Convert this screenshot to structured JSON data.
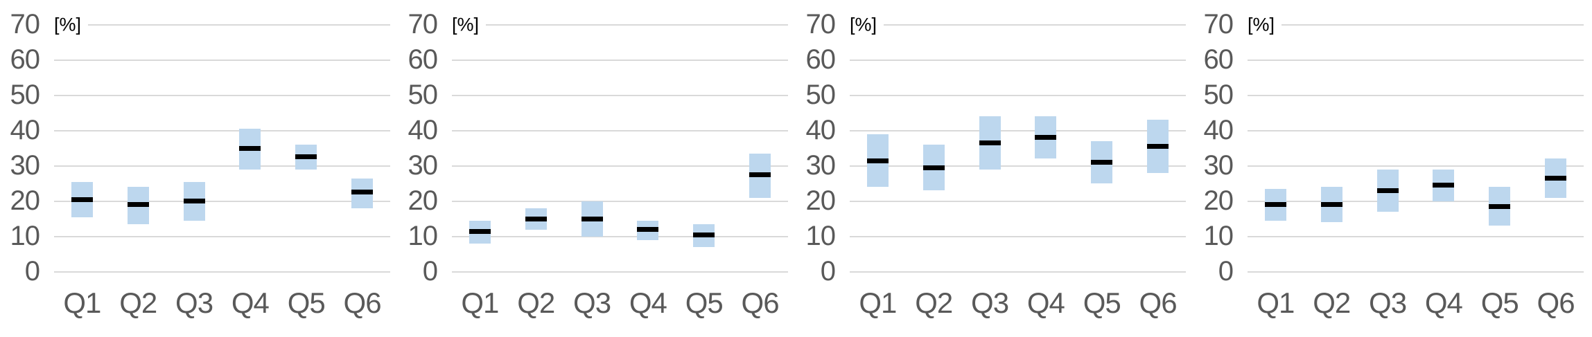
{
  "page": {
    "background": "#ffffff",
    "panel_count": 4
  },
  "chart_data": [
    {
      "type": "bar",
      "subtype": "floating-range-with-median-marker",
      "title": "",
      "unit_label": "[%]",
      "categories": [
        "Q1",
        "Q2",
        "Q3",
        "Q4",
        "Q5",
        "Q6"
      ],
      "series": [
        {
          "name": "range_low",
          "values": [
            15.5,
            13.5,
            14.5,
            29,
            29,
            18
          ]
        },
        {
          "name": "range_high",
          "values": [
            25.5,
            24,
            25.5,
            40.5,
            36,
            26.5
          ]
        },
        {
          "name": "median",
          "values": [
            20.5,
            19,
            20,
            35,
            32.5,
            22.5
          ]
        }
      ],
      "ylim": [
        0,
        70
      ],
      "yticks": [
        70,
        60,
        50,
        40,
        30,
        20,
        10,
        0
      ],
      "grid": true,
      "legend": false,
      "colors": {
        "range_box": "#BDD7EE",
        "median_line": "#000000",
        "gridline": "#D9D9D9",
        "axis_text": "#595959",
        "unit_text": "#000000"
      }
    },
    {
      "type": "bar",
      "subtype": "floating-range-with-median-marker",
      "title": "",
      "unit_label": "[%]",
      "categories": [
        "Q1",
        "Q2",
        "Q3",
        "Q4",
        "Q5",
        "Q6"
      ],
      "series": [
        {
          "name": "range_low",
          "values": [
            8,
            12,
            10,
            9,
            7,
            21
          ]
        },
        {
          "name": "range_high",
          "values": [
            14.5,
            18,
            20,
            14.5,
            13.5,
            33.5
          ]
        },
        {
          "name": "median",
          "values": [
            11.5,
            15,
            15,
            12,
            10.5,
            27.5
          ]
        }
      ],
      "ylim": [
        0,
        70
      ],
      "yticks": [
        70,
        60,
        50,
        40,
        30,
        20,
        10,
        0
      ],
      "grid": true,
      "legend": false,
      "colors": {
        "range_box": "#BDD7EE",
        "median_line": "#000000",
        "gridline": "#D9D9D9",
        "axis_text": "#595959",
        "unit_text": "#000000"
      }
    },
    {
      "type": "bar",
      "subtype": "floating-range-with-median-marker",
      "title": "",
      "unit_label": "[%]",
      "categories": [
        "Q1",
        "Q2",
        "Q3",
        "Q4",
        "Q5",
        "Q6"
      ],
      "series": [
        {
          "name": "range_low",
          "values": [
            24,
            23,
            29,
            32,
            25,
            28
          ]
        },
        {
          "name": "range_high",
          "values": [
            39,
            36,
            44,
            44,
            37,
            43
          ]
        },
        {
          "name": "median",
          "values": [
            31.5,
            29.5,
            36.5,
            38,
            31,
            35.5
          ]
        }
      ],
      "ylim": [
        0,
        70
      ],
      "yticks": [
        70,
        60,
        50,
        40,
        30,
        20,
        10,
        0
      ],
      "grid": true,
      "legend": false,
      "colors": {
        "range_box": "#BDD7EE",
        "median_line": "#000000",
        "gridline": "#D9D9D9",
        "axis_text": "#595959",
        "unit_text": "#000000"
      }
    },
    {
      "type": "bar",
      "subtype": "floating-range-with-median-marker",
      "title": "",
      "unit_label": "[%]",
      "categories": [
        "Q1",
        "Q2",
        "Q3",
        "Q4",
        "Q5",
        "Q6"
      ],
      "series": [
        {
          "name": "range_low",
          "values": [
            14.5,
            14,
            17,
            20,
            13,
            21
          ]
        },
        {
          "name": "range_high",
          "values": [
            23.5,
            24,
            29,
            29,
            24,
            32
          ]
        },
        {
          "name": "median",
          "values": [
            19,
            19,
            23,
            24.5,
            18.5,
            26.5
          ]
        }
      ],
      "ylim": [
        0,
        70
      ],
      "yticks": [
        70,
        60,
        50,
        40,
        30,
        20,
        10,
        0
      ],
      "grid": true,
      "legend": false,
      "colors": {
        "range_box": "#BDD7EE",
        "median_line": "#000000",
        "gridline": "#D9D9D9",
        "axis_text": "#595959",
        "unit_text": "#000000"
      }
    }
  ]
}
